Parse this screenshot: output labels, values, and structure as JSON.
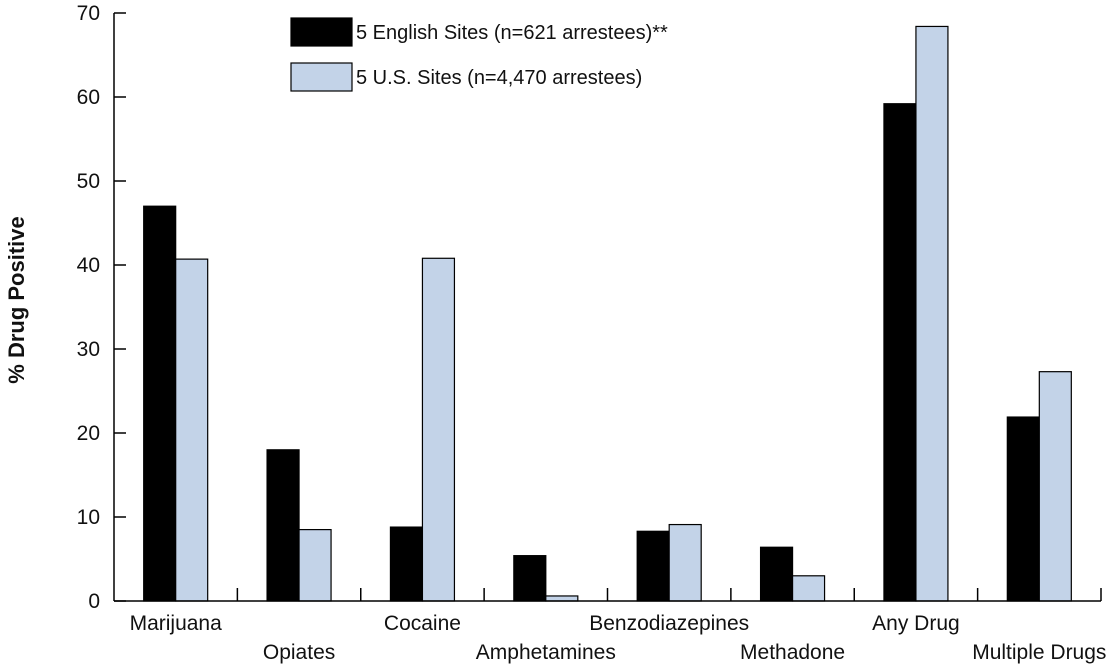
{
  "chart_data": {
    "type": "bar",
    "title": "",
    "xlabel": "",
    "ylabel": "% Drug Positive",
    "ylim": [
      0,
      70
    ],
    "yticks": [
      0,
      10,
      20,
      30,
      40,
      50,
      60,
      70
    ],
    "grid": false,
    "legend_position": "top-center",
    "categories": [
      "Marijuana",
      "Opiates",
      "Cocaine",
      "Amphetamines",
      "Benzodiazepines",
      "Methadone",
      "Any Drug",
      "Multiple Drugs"
    ],
    "series": [
      {
        "name": "5 English Sites (n=621 arrestees)**",
        "color": "#000000",
        "values": [
          47,
          18,
          8.8,
          5.4,
          8.3,
          6.4,
          59.2,
          21.9
        ]
      },
      {
        "name": "5 U.S. Sites (n=4,470 arrestees)",
        "color": "#c3d3e8",
        "values": [
          40.7,
          8.5,
          40.8,
          0.6,
          9.1,
          3,
          68.4,
          27.3
        ]
      }
    ]
  }
}
